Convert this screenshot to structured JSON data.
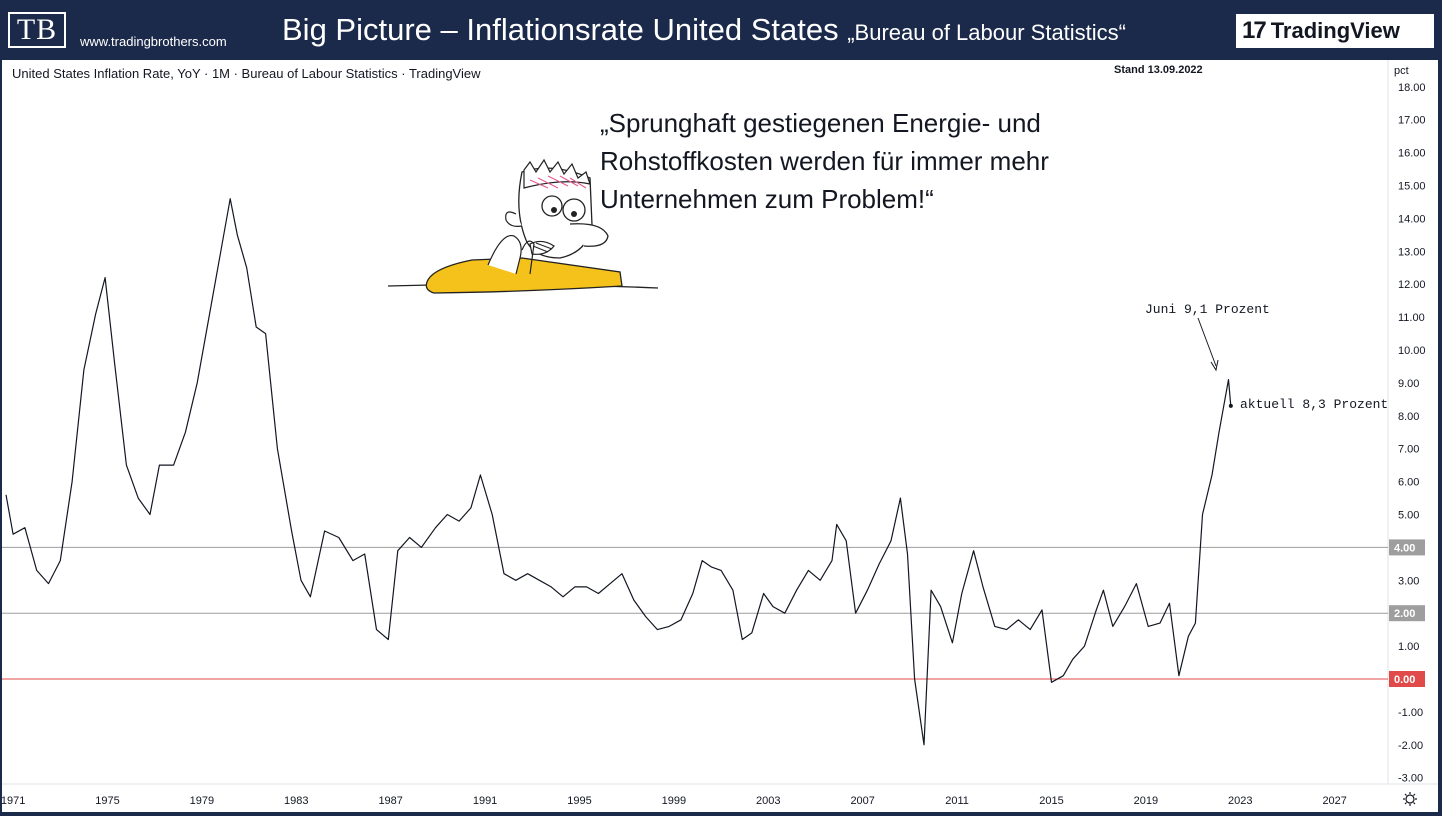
{
  "header": {
    "logo_text": "TB",
    "site_url": "www.tradingbrothers.com",
    "title": "Big Picture – Inflationsrate United States",
    "subtitle": "„Bureau of Labour Statistics“",
    "brand_logo_text": "TradingView"
  },
  "chart_header": {
    "symbol_line": "United States Inflation Rate, YoY · 1M · Bureau of Labour Statistics · TradingView",
    "stand": "Stand 13.09.2022",
    "unit": "pct"
  },
  "quote": "„Sprunghaft gestiegenen Energie- und\nRohstoffkosten werden für immer mehr\nUnternehmen zum Problem!“",
  "annotations": {
    "june": "Juni 9,1 Prozent",
    "current": "aktuell 8,3 Prozent"
  },
  "colors": {
    "line": "#131722",
    "zero_line": "#e04a4a",
    "ref_line": "#9e9e9e",
    "header_bg": "#1b2a4a"
  },
  "chart_data": {
    "type": "line",
    "title": "United States Inflation Rate, YoY",
    "ylabel": "pct",
    "ylim": [
      -3.3,
      18.3
    ],
    "xlim": [
      1970.7,
      2030
    ],
    "y_ticks": [
      "-3.00",
      "-2.00",
      "-1.00",
      "0.00",
      "1.00",
      "2.00",
      "3.00",
      "4.00",
      "5.00",
      "6.00",
      "7.00",
      "8.00",
      "9.00",
      "10.00",
      "11.00",
      "12.00",
      "13.00",
      "14.00",
      "15.00",
      "16.00",
      "17.00",
      "18.00"
    ],
    "x_ticks": [
      "1971",
      "1975",
      "1979",
      "1983",
      "1987",
      "1991",
      "1995",
      "1999",
      "2003",
      "2007",
      "2011",
      "2015",
      "2019",
      "2023",
      "2027"
    ],
    "highlighted_levels": [
      {
        "value": 4.0,
        "label": "4.00"
      },
      {
        "value": 2.0,
        "label": "2.00"
      },
      {
        "value": 0.0,
        "label": "0.00"
      }
    ],
    "series": [
      {
        "x": [
          1970.7,
          1971.0,
          1971.5,
          1972.0,
          1972.5,
          1973.0,
          1973.5,
          1974.0,
          1974.5,
          1974.9,
          1975.3,
          1975.8,
          1976.3,
          1976.8,
          1977.2,
          1977.8,
          1978.3,
          1978.8,
          1979.3,
          1979.8,
          1980.2,
          1980.5,
          1980.9,
          1981.3,
          1981.7,
          1982.2,
          1982.8,
          1983.2,
          1983.6,
          1984.2,
          1984.8,
          1985.4,
          1985.9,
          1986.4,
          1986.9,
          1987.3,
          1987.8,
          1988.3,
          1988.9,
          1989.4,
          1989.9,
          1990.4,
          1990.8,
          1991.3,
          1991.8,
          1992.3,
          1992.8,
          1993.3,
          1993.8,
          1994.3,
          1994.8,
          1995.3,
          1995.8,
          1996.3,
          1996.8,
          1997.3,
          1997.8,
          1998.3,
          1998.8,
          1999.3,
          1999.8,
          2000.2,
          2000.6,
          2001.0,
          2001.5,
          2001.9,
          2002.3,
          2002.8,
          2003.2,
          2003.7,
          2004.2,
          2004.7,
          2005.2,
          2005.7,
          2005.9,
          2006.3,
          2006.7,
          2007.2,
          2007.7,
          2008.2,
          2008.6,
          2008.9,
          2009.2,
          2009.6,
          2009.9,
          2010.3,
          2010.8,
          2011.2,
          2011.7,
          2012.1,
          2012.6,
          2013.1,
          2013.6,
          2014.1,
          2014.6,
          2015.0,
          2015.5,
          2015.9,
          2016.4,
          2016.9,
          2017.2,
          2017.6,
          2018.1,
          2018.6,
          2019.1,
          2019.6,
          2020.0,
          2020.4,
          2020.8,
          2021.1,
          2021.4,
          2021.8,
          2022.1,
          2022.5,
          2022.6
        ],
        "values": [
          5.6,
          4.4,
          4.6,
          3.3,
          2.9,
          3.6,
          6.0,
          9.4,
          11.1,
          12.2,
          9.6,
          6.5,
          5.5,
          5.0,
          6.5,
          6.5,
          7.5,
          9.0,
          11.0,
          13.0,
          14.6,
          13.5,
          12.5,
          10.7,
          10.5,
          7.0,
          4.5,
          3.0,
          2.5,
          4.5,
          4.3,
          3.6,
          3.8,
          1.5,
          1.2,
          3.9,
          4.3,
          4.0,
          4.6,
          5.0,
          4.8,
          5.2,
          6.2,
          5.0,
          3.2,
          3.0,
          3.2,
          3.0,
          2.8,
          2.5,
          2.8,
          2.8,
          2.6,
          2.9,
          3.2,
          2.4,
          1.9,
          1.5,
          1.6,
          1.8,
          2.6,
          3.6,
          3.4,
          3.3,
          2.7,
          1.2,
          1.4,
          2.6,
          2.2,
          2.0,
          2.7,
          3.3,
          3.0,
          3.6,
          4.7,
          4.2,
          2.0,
          2.7,
          3.5,
          4.2,
          5.5,
          3.8,
          0.0,
          -2.0,
          2.7,
          2.2,
          1.1,
          2.6,
          3.9,
          2.8,
          1.6,
          1.5,
          1.8,
          1.5,
          2.1,
          -0.1,
          0.1,
          0.6,
          1.0,
          2.1,
          2.7,
          1.6,
          2.2,
          2.9,
          1.6,
          1.7,
          2.3,
          0.1,
          1.3,
          1.7,
          5.0,
          6.2,
          7.5,
          9.1,
          8.3
        ]
      }
    ]
  }
}
